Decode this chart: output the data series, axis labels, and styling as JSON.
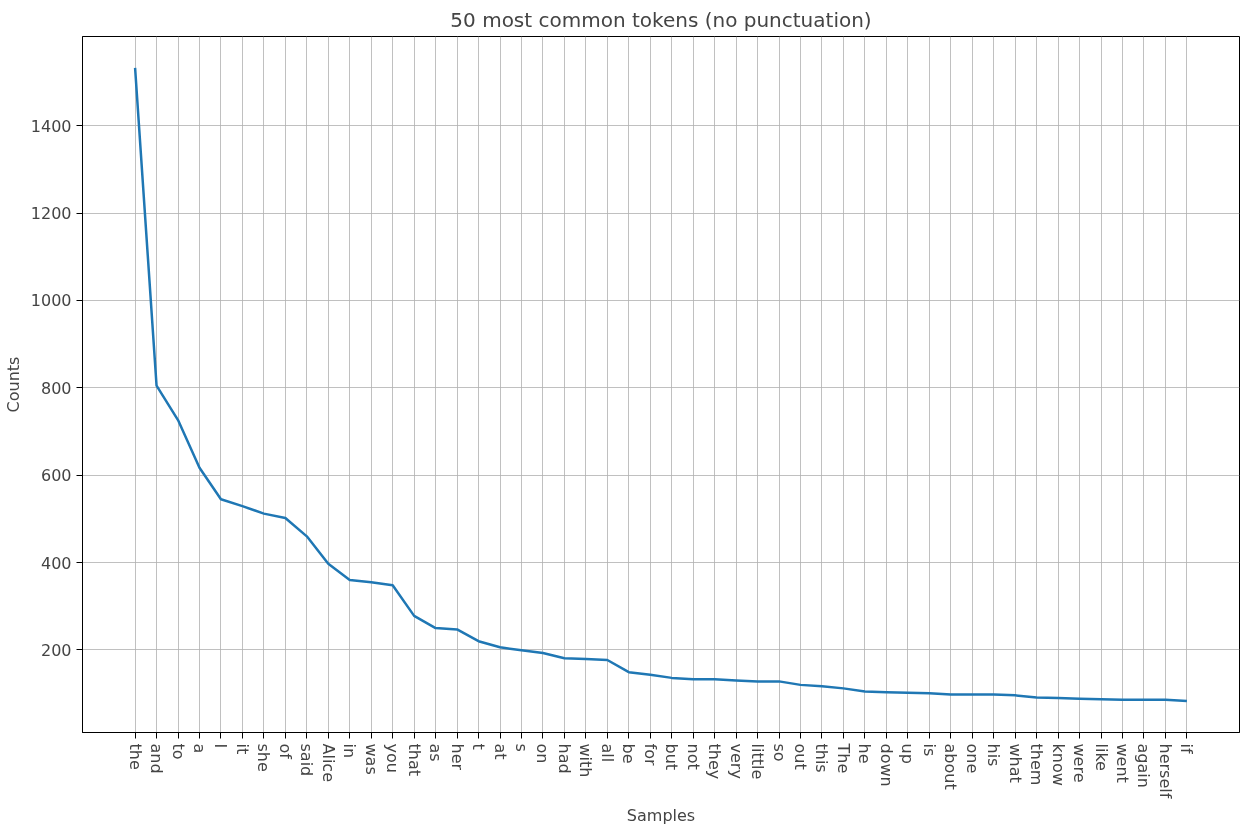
{
  "chart_data": {
    "type": "line",
    "title": "50 most common tokens (no punctuation)",
    "xlabel": "Samples",
    "ylabel": "Counts",
    "categories": [
      "the",
      "and",
      "to",
      "a",
      "I",
      "it",
      "she",
      "of",
      "said",
      "Alice",
      "in",
      "was",
      "you",
      "that",
      "as",
      "her",
      "t",
      "at",
      "s",
      "on",
      "had",
      "with",
      "all",
      "be",
      "for",
      "but",
      "not",
      "they",
      "very",
      "little",
      "so",
      "out",
      "this",
      "The",
      "he",
      "down",
      "up",
      "is",
      "about",
      "one",
      "his",
      "what",
      "them",
      "know",
      "were",
      "like",
      "went",
      "again",
      "herself",
      "if"
    ],
    "series": [
      {
        "color": "#1f77b4",
        "values": [
          1532,
          805,
          726,
          617,
          545,
          529,
          512,
          502,
          460,
          397,
          360,
          355,
          348,
          278,
          250,
          247,
          220,
          206,
          199,
          193,
          181,
          179,
          177,
          149,
          143,
          136,
          133,
          133,
          130,
          128,
          128,
          120,
          117,
          112,
          105,
          103,
          102,
          101,
          98,
          98,
          98,
          96,
          91,
          90,
          88,
          87,
          86,
          86,
          86,
          83
        ]
      }
    ],
    "ylim": [
      11,
      1604
    ],
    "yticks": [
      200,
      400,
      600,
      800,
      1000,
      1200,
      1400
    ],
    "grid": true,
    "marker": "none",
    "line_style": "solid"
  }
}
